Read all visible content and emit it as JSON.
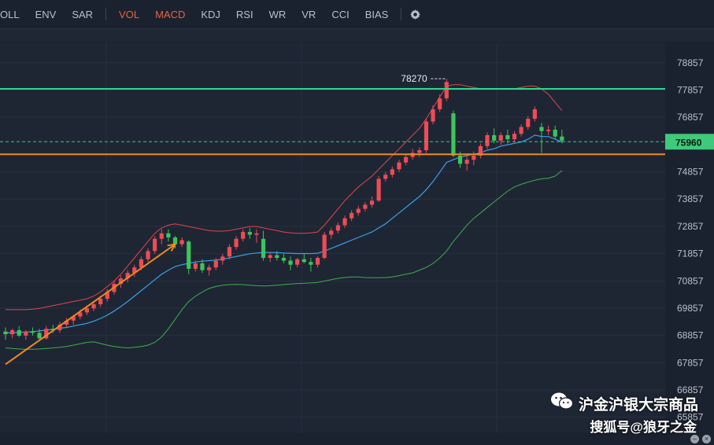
{
  "toolbar": {
    "items": [
      {
        "label": "OLL",
        "active": false
      },
      {
        "label": "ENV",
        "active": false
      },
      {
        "label": "SAR",
        "active": false
      },
      {
        "label": "VOL",
        "active": true
      },
      {
        "label": "MACD",
        "active": true
      },
      {
        "label": "KDJ",
        "active": false
      },
      {
        "label": "RSI",
        "active": false
      },
      {
        "label": "WR",
        "active": false
      },
      {
        "label": "VR",
        "active": false
      },
      {
        "label": "CCI",
        "active": false
      },
      {
        "label": "BIAS",
        "active": false
      }
    ],
    "settings_icon": "gear-icon"
  },
  "watermark": {
    "brand": "沪金沪银大宗商品",
    "author": "搜狐号@狼牙之金",
    "icon": "wechat-icon"
  },
  "colors": {
    "background": "#1b222f",
    "up": "#ef4b55",
    "down": "#3ec45a",
    "upper_band": "#e0464a",
    "mid_band": "#3aa0e8",
    "lower_band": "#3fae4a",
    "resistance": "#2fd58a",
    "support": "#f08a1e",
    "trend_arrow": "#f08a1e",
    "price_tag": "#3fc97a"
  },
  "chart_data": {
    "type": "candlestick",
    "y_ticks": [
      78857,
      77857,
      76857,
      74857,
      73857,
      72857,
      71857,
      70857,
      69857,
      68857,
      67857,
      66857,
      65857
    ],
    "ylim": [
      65300,
      79600
    ],
    "current_price": 75960,
    "high_marker": 78270,
    "resistance_level": 77900,
    "support_level": 75500,
    "grid": true,
    "candles": [
      [
        69000,
        69150,
        68700,
        68900
      ],
      [
        68900,
        69100,
        68750,
        69050
      ],
      [
        69050,
        69200,
        68800,
        68850
      ],
      [
        68850,
        69050,
        68700,
        69000
      ],
      [
        69000,
        69150,
        68850,
        68950
      ],
      [
        68950,
        69100,
        68650,
        68750
      ],
      [
        68750,
        69200,
        68700,
        69100
      ],
      [
        69100,
        69250,
        68950,
        69050
      ],
      [
        69050,
        69350,
        68950,
        69250
      ],
      [
        69250,
        69500,
        69150,
        69400
      ],
      [
        69400,
        69600,
        69250,
        69550
      ],
      [
        69550,
        69800,
        69450,
        69700
      ],
      [
        69700,
        69950,
        69600,
        69850
      ],
      [
        69850,
        70100,
        69750,
        70000
      ],
      [
        70000,
        70300,
        69900,
        70200
      ],
      [
        70200,
        70550,
        70100,
        70450
      ],
      [
        70450,
        70850,
        70350,
        70750
      ],
      [
        70750,
        71050,
        70600,
        70950
      ],
      [
        70950,
        71250,
        70800,
        71150
      ],
      [
        71150,
        71450,
        71000,
        71350
      ],
      [
        71350,
        71750,
        71250,
        71650
      ],
      [
        71650,
        72050,
        71550,
        71950
      ],
      [
        71950,
        72500,
        71850,
        72400
      ],
      [
        72400,
        72750,
        72200,
        72600
      ],
      [
        72600,
        72750,
        72300,
        72450
      ],
      [
        72450,
        72500,
        72050,
        72200
      ],
      [
        72200,
        72450,
        72100,
        72350
      ],
      [
        72300,
        72350,
        71100,
        71300
      ],
      [
        71300,
        71600,
        71200,
        71500
      ],
      [
        71500,
        71650,
        71150,
        71250
      ],
      [
        71250,
        71450,
        71050,
        71350
      ],
      [
        71350,
        71700,
        71250,
        71600
      ],
      [
        71600,
        71850,
        71450,
        71750
      ],
      [
        71750,
        72200,
        71650,
        72100
      ],
      [
        72100,
        72500,
        72000,
        72400
      ],
      [
        72400,
        72750,
        72300,
        72650
      ],
      [
        72650,
        72800,
        72400,
        72550
      ],
      [
        72550,
        72750,
        72250,
        72600
      ],
      [
        72400,
        72700,
        71600,
        71700
      ],
      [
        71700,
        71900,
        71550,
        71800
      ],
      [
        71800,
        71950,
        71600,
        71700
      ],
      [
        71700,
        71850,
        71500,
        71600
      ],
      [
        71600,
        71750,
        71250,
        71450
      ],
      [
        71450,
        71700,
        71350,
        71650
      ],
      [
        71650,
        71850,
        71500,
        71550
      ],
      [
        71550,
        71700,
        71200,
        71450
      ],
      [
        71450,
        71750,
        71350,
        71700
      ],
      [
        71700,
        72650,
        71650,
        72550
      ],
      [
        72550,
        72800,
        72400,
        72700
      ],
      [
        72700,
        73000,
        72600,
        72900
      ],
      [
        72900,
        73250,
        72800,
        73150
      ],
      [
        73150,
        73450,
        73050,
        73350
      ],
      [
        73350,
        73600,
        73250,
        73500
      ],
      [
        73500,
        73750,
        73400,
        73650
      ],
      [
        73650,
        73950,
        73550,
        73800
      ],
      [
        73800,
        74700,
        73750,
        74600
      ],
      [
        74600,
        74850,
        74500,
        74750
      ],
      [
        74750,
        75050,
        74650,
        74950
      ],
      [
        74950,
        75300,
        74850,
        75200
      ],
      [
        75200,
        75500,
        75100,
        75400
      ],
      [
        75400,
        75700,
        75300,
        75550
      ],
      [
        75550,
        75750,
        75400,
        75650
      ],
      [
        75650,
        76800,
        75550,
        76700
      ],
      [
        76700,
        77300,
        76600,
        77150
      ],
      [
        77150,
        77700,
        77050,
        77550
      ],
      [
        77550,
        78270,
        77450,
        78150
      ],
      [
        77000,
        77100,
        75400,
        75450
      ],
      [
        75450,
        75600,
        75000,
        75150
      ],
      [
        75150,
        75450,
        74900,
        75300
      ],
      [
        75300,
        75600,
        75100,
        75450
      ],
      [
        75450,
        75900,
        75350,
        75800
      ],
      [
        75800,
        76300,
        75700,
        76200
      ],
      [
        76200,
        76450,
        75900,
        76000
      ],
      [
        76000,
        76300,
        75850,
        76200
      ],
      [
        76200,
        76400,
        75900,
        76050
      ],
      [
        76050,
        76350,
        75950,
        76250
      ],
      [
        76250,
        76600,
        76150,
        76500
      ],
      [
        76500,
        76900,
        76400,
        76800
      ],
      [
        76800,
        77250,
        76700,
        77150
      ],
      [
        76500,
        76650,
        75550,
        76350
      ],
      [
        76350,
        76550,
        76200,
        76400
      ],
      [
        76400,
        76550,
        76050,
        76150
      ],
      [
        76150,
        76400,
        75900,
        76000
      ]
    ],
    "upper_band": [
      69800,
      69800,
      69800,
      69800,
      69820,
      69850,
      69900,
      69950,
      70000,
      70050,
      70100,
      70150,
      70200,
      70300,
      70450,
      70650,
      70850,
      71100,
      71400,
      71700,
      72000,
      72300,
      72600,
      72800,
      72900,
      72950,
      72900,
      72850,
      72800,
      72750,
      72700,
      72680,
      72680,
      72700,
      72750,
      72800,
      72850,
      72850,
      72800,
      72750,
      72700,
      72650,
      72620,
      72600,
      72600,
      72620,
      72650,
      72900,
      73200,
      73500,
      73800,
      74050,
      74300,
      74500,
      74700,
      74950,
      75200,
      75450,
      75700,
      75950,
      76200,
      76450,
      76800,
      77200,
      77600,
      78000,
      78050,
      78050,
      78000,
      77950,
      77900,
      77900,
      77900,
      77900,
      77900,
      77900,
      77950,
      78000,
      78000,
      77900,
      77700,
      77400,
      77100
    ],
    "mid_band": [
      68950,
      68950,
      68970,
      68980,
      69000,
      69020,
      69050,
      69080,
      69120,
      69150,
      69200,
      69250,
      69300,
      69380,
      69480,
      69600,
      69750,
      69920,
      70100,
      70300,
      70500,
      70700,
      70900,
      71100,
      71250,
      71380,
      71450,
      71500,
      71550,
      71580,
      71600,
      71620,
      71650,
      71700,
      71750,
      71800,
      71850,
      71880,
      71900,
      71900,
      71890,
      71880,
      71870,
      71860,
      71860,
      71860,
      71870,
      71950,
      72050,
      72150,
      72250,
      72350,
      72450,
      72550,
      72650,
      72800,
      72950,
      73150,
      73350,
      73550,
      73750,
      73950,
      74200,
      74500,
      74850,
      75200,
      75300,
      75400,
      75450,
      75500,
      75550,
      75650,
      75700,
      75800,
      75850,
      75900,
      75950,
      76050,
      76200,
      76150,
      76150,
      76050,
      75950
    ],
    "lower_band": [
      68400,
      68380,
      68360,
      68350,
      68350,
      68360,
      68380,
      68400,
      68420,
      68450,
      68500,
      68550,
      68600,
      68620,
      68560,
      68500,
      68450,
      68420,
      68400,
      68420,
      68450,
      68500,
      68600,
      68800,
      69100,
      69450,
      69800,
      70100,
      70300,
      70450,
      70580,
      70650,
      70700,
      70720,
      70730,
      70720,
      70700,
      70680,
      70670,
      70680,
      70700,
      70720,
      70740,
      70760,
      70770,
      70780,
      70800,
      70850,
      70900,
      70950,
      70980,
      71000,
      71000,
      70980,
      70970,
      70970,
      70980,
      71000,
      71050,
      71100,
      71150,
      71250,
      71350,
      71500,
      71700,
      71950,
      72300,
      72600,
      72900,
      73150,
      73350,
      73550,
      73750,
      73950,
      74150,
      74300,
      74400,
      74480,
      74550,
      74600,
      74620,
      74700,
      74900
    ]
  }
}
